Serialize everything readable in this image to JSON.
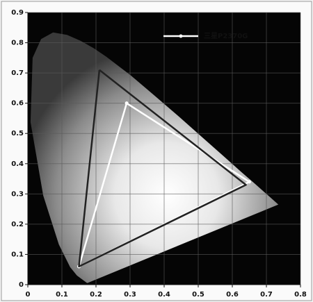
{
  "chart_data": {
    "type": "line",
    "xlim": [
      0,
      0.8
    ],
    "xticks": [
      0,
      0.1,
      0.2,
      0.3,
      0.4,
      0.5,
      0.6,
      0.7,
      0.8
    ],
    "ylim": [
      0,
      0.9
    ],
    "yticks": [
      0,
      0.1,
      0.2,
      0.3,
      0.4,
      0.5,
      0.6,
      0.7,
      0.8,
      0.9
    ],
    "grid": true,
    "legend": "upper right",
    "series": [
      {
        "name": "三星P2370G",
        "color": "#ffffff",
        "marker": true,
        "x": [
          0.15,
          0.29,
          0.65,
          0.15
        ],
        "values": [
          0.06,
          0.6,
          0.34,
          0.06
        ]
      },
      {
        "color": "#222222",
        "marker": false,
        "x": [
          0.21,
          0.15,
          0.64,
          0.21
        ],
        "values": [
          0.71,
          0.06,
          0.33,
          0.71
        ]
      }
    ]
  }
}
